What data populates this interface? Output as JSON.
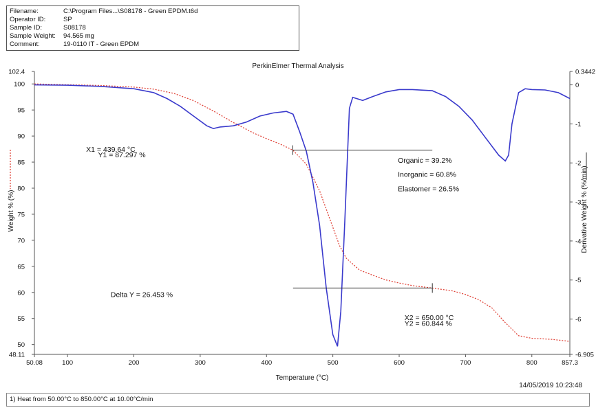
{
  "header": {
    "rows": [
      {
        "label": "Filename:",
        "value": "C:\\Program Files...\\S08178 - Green EPDM.t6d"
      },
      {
        "label": "Operator ID:",
        "value": "SP"
      },
      {
        "label": "Sample ID:",
        "value": "S08178"
      },
      {
        "label": "Sample Weight:",
        "value": "94.565 mg"
      },
      {
        "label": "Comment:",
        "value": "19-0110 IT - Green EPDM"
      }
    ]
  },
  "footer": {
    "date": "14/05/2019 10:23:48",
    "method": "1) Heat from 50.00°C to 850.00°C at 10.00°C/min"
  },
  "chart_data": {
    "type": "line",
    "title": "PerkinElmer Thermal Analysis",
    "xlabel": "Temperature (°C)",
    "ylabel": "Weight % (%)",
    "y2label": "Derivative Weight % (%/min)",
    "xlim": [
      50.08,
      857.3
    ],
    "ylim": [
      48.11,
      102.4
    ],
    "y2lim": [
      -6.905,
      0.3442
    ],
    "x_ticks": [
      {
        "v": 50.08,
        "label": "50.08"
      },
      {
        "v": 100,
        "label": "100"
      },
      {
        "v": 200,
        "label": "200"
      },
      {
        "v": 300,
        "label": "300"
      },
      {
        "v": 400,
        "label": "400"
      },
      {
        "v": 500,
        "label": "500"
      },
      {
        "v": 600,
        "label": "600"
      },
      {
        "v": 700,
        "label": "700"
      },
      {
        "v": 800,
        "label": "800"
      },
      {
        "v": 857.3,
        "label": "857.3"
      }
    ],
    "y_ticks": [
      {
        "v": 102.4,
        "label": "102.4"
      },
      {
        "v": 100,
        "label": "100"
      },
      {
        "v": 95,
        "label": "95"
      },
      {
        "v": 90,
        "label": "90"
      },
      {
        "v": 85,
        "label": "85"
      },
      {
        "v": 80,
        "label": "80"
      },
      {
        "v": 75,
        "label": "75"
      },
      {
        "v": 70,
        "label": "70"
      },
      {
        "v": 65,
        "label": "65"
      },
      {
        "v": 60,
        "label": "60"
      },
      {
        "v": 55,
        "label": "55"
      },
      {
        "v": 50,
        "label": "50"
      },
      {
        "v": 48.11,
        "label": "48.11"
      }
    ],
    "y2_ticks": [
      {
        "v": 0.3442,
        "label": "0.3442"
      },
      {
        "v": 0,
        "label": "0"
      },
      {
        "v": -1,
        "label": "-1"
      },
      {
        "v": -2,
        "label": "-2"
      },
      {
        "v": -3,
        "label": "-3"
      },
      {
        "v": -4,
        "label": "-4"
      },
      {
        "v": -5,
        "label": "-5"
      },
      {
        "v": -6,
        "label": "-6"
      },
      {
        "v": -6.905,
        "label": "-6.905"
      }
    ],
    "series": [
      {
        "axis": "left",
        "color": "#e0453a",
        "style": "dotted",
        "x": [
          50,
          100,
          150,
          200,
          230,
          260,
          290,
          320,
          350,
          380,
          400,
          420,
          439.64,
          460,
          480,
          500,
          510,
          520,
          540,
          560,
          580,
          600,
          620,
          650,
          680,
          700,
          720,
          740,
          760,
          780,
          800,
          830,
          857.3
        ],
        "y": [
          100,
          99.85,
          99.7,
          99.4,
          99.0,
          98.2,
          96.8,
          94.8,
          92.6,
          90.6,
          89.5,
          88.5,
          87.297,
          84.6,
          79.5,
          72.5,
          69.0,
          66.6,
          64.3,
          63.3,
          62.4,
          61.8,
          61.3,
          60.844,
          60.3,
          59.6,
          58.6,
          57.0,
          54.2,
          51.7,
          51.2,
          51.0,
          50.6
        ]
      },
      {
        "axis": "right",
        "color": "#3a3acc",
        "style": "solid",
        "x": [
          50,
          100,
          150,
          200,
          230,
          250,
          270,
          290,
          310,
          320,
          330,
          350,
          370,
          390,
          410,
          430,
          440,
          450,
          460,
          470,
          480,
          490,
          500,
          507,
          512,
          518,
          525,
          530,
          545,
          560,
          580,
          600,
          620,
          650,
          670,
          690,
          710,
          730,
          750,
          760,
          765,
          770,
          780,
          790,
          800,
          820,
          840,
          857.3
        ],
        "y": [
          0,
          -0.01,
          -0.04,
          -0.1,
          -0.2,
          -0.35,
          -0.55,
          -0.8,
          -1.05,
          -1.12,
          -1.08,
          -1.05,
          -0.95,
          -0.8,
          -0.72,
          -0.68,
          -0.75,
          -1.2,
          -1.7,
          -2.5,
          -3.6,
          -5.2,
          -6.4,
          -6.7,
          -5.8,
          -3.5,
          -0.6,
          -0.32,
          -0.4,
          -0.3,
          -0.18,
          -0.12,
          -0.12,
          -0.15,
          -0.3,
          -0.55,
          -0.9,
          -1.35,
          -1.8,
          -1.95,
          -1.8,
          -1.0,
          -0.2,
          -0.1,
          -0.12,
          -0.13,
          -0.2,
          -0.35
        ]
      }
    ],
    "markers": [
      {
        "kind": "hline",
        "y": 87.297,
        "x1": 440,
        "x2": 650,
        "tick_x": 439.64
      },
      {
        "kind": "hline",
        "y": 60.844,
        "x1": 440,
        "x2": 650,
        "tick_x": 650
      }
    ],
    "annotations": [
      {
        "text": "X1 = 439.64 °C",
        "x": 128,
        "y": 87.0
      },
      {
        "text": "Y1 = 87.297 %",
        "x": 146,
        "y": 85.9
      },
      {
        "text": "Organic = 39.2%",
        "x": 598,
        "y": 84.9
      },
      {
        "text": "Inorganic = 60.8%",
        "x": 598,
        "y": 82.2
      },
      {
        "text": "Elastomer = 26.5%",
        "x": 598,
        "y": 79.4
      },
      {
        "text": "Delta Y = 26.453 %",
        "x": 165,
        "y": 59.1
      },
      {
        "text": "X2 = 650.00 °C",
        "x": 608,
        "y": 54.7
      },
      {
        "text": "Y2 = 60.844 %",
        "x": 608,
        "y": 53.6
      }
    ]
  }
}
